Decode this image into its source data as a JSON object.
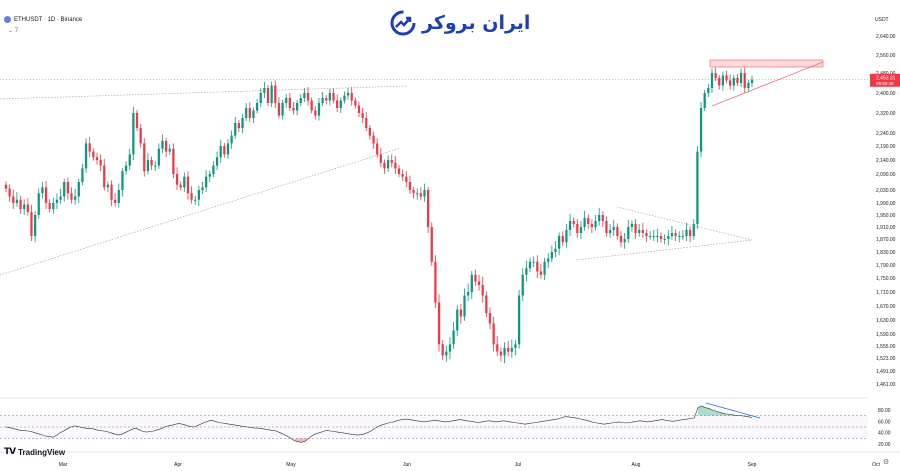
{
  "header": {
    "symbol_line": "ETHUSDT · 1D · Binance",
    "indicator_toggle": "⌄ 7"
  },
  "brand": {
    "text": "ایران بروکر",
    "logo_icon": "growth-arrow-icon"
  },
  "axis": {
    "currency": "USDT"
  },
  "footer": {
    "logo_text": "TradingView",
    "settings_icon": "gear-icon"
  },
  "colors": {
    "up": "#089981",
    "down": "#f23645",
    "grid_trend": "#9598a1",
    "rsi_line": "#2a2e39",
    "brand": "#1d3fb5"
  },
  "chart_data": [
    {
      "type": "candlestick",
      "x_ticks": [
        "Mar",
        "Apr",
        "May",
        "Jun",
        "Jul",
        "Aug",
        "Sep",
        "Oct"
      ],
      "y_ticks": [
        2640,
        2560,
        2480,
        2400,
        2320,
        2240,
        2190,
        2140,
        2090,
        2030,
        1990,
        1950,
        1910,
        1870,
        1830,
        1790,
        1750,
        1710,
        1670,
        1630,
        1590,
        1555,
        1523,
        1491,
        1461
      ],
      "y_tick_labels": [
        "2,640.00",
        "2,560.00",
        "2,480.00",
        "2,400.00",
        "2,320.00",
        "2,240.00",
        "2,190.00",
        "2,140.00",
        "2,090.00",
        "2,030.00",
        "1,990.00",
        "1,950.00",
        "1,910.00",
        "1,870.00",
        "1,830.00",
        "1,790.00",
        "1,750.00",
        "1,710.00",
        "1,670.00",
        "1,630.00",
        "1,590.00",
        "1,555.00",
        "1,523.00",
        "1,491.00",
        "1,461.00"
      ],
      "price_label": {
        "value": "2,453.31",
        "countdown": "09:50:48"
      },
      "closes": [
        2035,
        2010,
        1990,
        2000,
        1970,
        1985,
        1960,
        1880,
        1950,
        2020,
        2040,
        1990,
        1970,
        1990,
        2000,
        2010,
        2060,
        2020,
        2000,
        2010,
        2060,
        2110,
        2200,
        2170,
        2150,
        2140,
        2120,
        2040,
        2050,
        2000,
        1990,
        2030,
        2100,
        2120,
        2160,
        2320,
        2260,
        2200,
        2100,
        2140,
        2120,
        2120,
        2180,
        2210,
        2170,
        2180,
        2090,
        2050,
        2040,
        2080,
        2020,
        2000,
        2000,
        2030,
        2040,
        2080,
        2090,
        2120,
        2150,
        2190,
        2160,
        2200,
        2230,
        2280,
        2260,
        2300,
        2340,
        2300,
        2330,
        2360,
        2400,
        2420,
        2360,
        2430,
        2360,
        2310,
        2360,
        2380,
        2340,
        2330,
        2360,
        2380,
        2400,
        2370,
        2330,
        2310,
        2360,
        2380,
        2370,
        2400,
        2370,
        2340,
        2370,
        2390,
        2400,
        2370,
        2350,
        2320,
        2300,
        2260,
        2230,
        2200,
        2160,
        2130,
        2110,
        2140,
        2130,
        2110,
        2090,
        2080,
        2060,
        2030,
        2020,
        2020,
        2010,
        2030,
        1910,
        1800,
        1680,
        1560,
        1530,
        1540,
        1560,
        1600,
        1660,
        1640,
        1700,
        1710,
        1760,
        1740,
        1730,
        1700,
        1650,
        1620,
        1560,
        1540,
        1530,
        1550,
        1540,
        1550,
        1560,
        1700,
        1760,
        1780,
        1800,
        1800,
        1770,
        1760,
        1800,
        1810,
        1830,
        1840,
        1880,
        1860,
        1900,
        1930,
        1920,
        1890,
        1910,
        1940,
        1920,
        1910,
        1930,
        1950,
        1930,
        1890,
        1900,
        1910,
        1880,
        1860,
        1870,
        1910,
        1920,
        1890,
        1900,
        1890,
        1880,
        1880,
        1880,
        1880,
        1870,
        1870,
        1880,
        1890,
        1880,
        1880,
        1880,
        1900,
        1880,
        1920,
        2170,
        2340,
        2400,
        2420,
        2480,
        2460,
        2430,
        2470,
        2450,
        2430,
        2460,
        2440,
        2480,
        2420,
        2440,
        2453
      ],
      "rsi": {
        "levels": [
          80,
          60,
          40,
          20
        ],
        "values": [
          50,
          49,
          47,
          46,
          44,
          44,
          43,
          42,
          40,
          38,
          36,
          34,
          33,
          32,
          35,
          40,
          43,
          47,
          50,
          52,
          51,
          49,
          48,
          47,
          47,
          45,
          44,
          43,
          42,
          40,
          38,
          36,
          37,
          40,
          43,
          46,
          48,
          45,
          42,
          41,
          42,
          43,
          45,
          47,
          50,
          52,
          53,
          55,
          56,
          55,
          53,
          51,
          50,
          52,
          55,
          58,
          60,
          62,
          60,
          58,
          57,
          56,
          55,
          54,
          53,
          52,
          51,
          50,
          49,
          48,
          48,
          47,
          46,
          45,
          44,
          43,
          40,
          37,
          34,
          30,
          26,
          24,
          23,
          25,
          30,
          35,
          38,
          40,
          42,
          44,
          43,
          42,
          41,
          40,
          39,
          38,
          37,
          36,
          36,
          37,
          39,
          42,
          46,
          50,
          53,
          55,
          57,
          58,
          60,
          62,
          63,
          64,
          63,
          62,
          61,
          60,
          59,
          60,
          61,
          62,
          61,
          60,
          59,
          60,
          61,
          62,
          63,
          62,
          61,
          60,
          59,
          58,
          59,
          60,
          61,
          60,
          59,
          60,
          61,
          60,
          59,
          58,
          57,
          56,
          55,
          56,
          57,
          58,
          59,
          60,
          61,
          62,
          63,
          64,
          66,
          68,
          68,
          67,
          66,
          65,
          63,
          62,
          60,
          58,
          57,
          56,
          55,
          56,
          57,
          58,
          59,
          58,
          57,
          58,
          59,
          60,
          61,
          60,
          59,
          60,
          61,
          62,
          63,
          62,
          61,
          60,
          61,
          62,
          63,
          64,
          65,
          66,
          84,
          87,
          84,
          83,
          80,
          78,
          76,
          74,
          73,
          72,
          71,
          70,
          70,
          69,
          68,
          67
        ]
      }
    }
  ]
}
